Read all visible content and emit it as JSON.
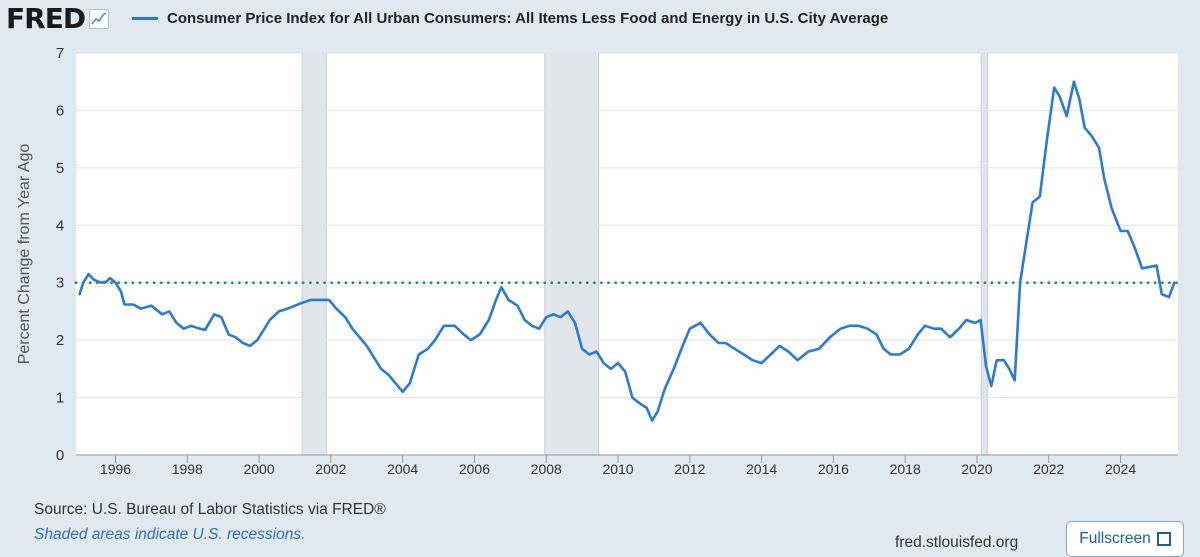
{
  "header": {
    "logo_text": "FRED",
    "logo_icon": "line-chart-icon",
    "series_label": "Consumer Price Index for All Urban Consumers: All Items Less Food and Energy in U.S. City Average"
  },
  "footer": {
    "source": "Source: U.S. Bureau of Labor Statistics via FRED®",
    "note": "Shaded areas indicate U.S. recessions.",
    "site": "fred.stlouisfed.org",
    "fullscreen_label": "Fullscreen",
    "fullscreen_icon": "expand-corners-icon"
  },
  "colors": {
    "background": "#e1e9f0",
    "plot_background": "#ffffff",
    "series_line": "#2b7bd4",
    "reference_line": "#1f8a6a",
    "recession_shade": "#e1e6ea"
  },
  "chart_data": {
    "type": "line",
    "title": "",
    "xlabel": "",
    "ylabel": "Percent Change from Year Ago",
    "xlim": [
      1994.9,
      2025.6
    ],
    "ylim": [
      0,
      7
    ],
    "x_ticks": [
      "1996",
      "1998",
      "2000",
      "2002",
      "2004",
      "2006",
      "2008",
      "2010",
      "2012",
      "2014",
      "2016",
      "2018",
      "2020",
      "2022",
      "2024"
    ],
    "y_ticks": [
      "0",
      "1",
      "2",
      "3",
      "4",
      "5",
      "6",
      "7"
    ],
    "grid": "horizontal",
    "legend": "top",
    "reference_line": {
      "y": 3.0,
      "style": "dotted"
    },
    "recessions": [
      {
        "start": 2001.2,
        "end": 2001.87
      },
      {
        "start": 2007.96,
        "end": 2009.46
      },
      {
        "start": 2020.12,
        "end": 2020.29
      }
    ],
    "series": [
      {
        "name": "Consumer Price Index for All Urban Consumers: All Items Less Food and Energy in U.S. City Average",
        "points": [
          [
            1995.0,
            2.8
          ],
          [
            1995.1,
            3.0
          ],
          [
            1995.25,
            3.15
          ],
          [
            1995.4,
            3.05
          ],
          [
            1995.6,
            3.0
          ],
          [
            1995.75,
            3.02
          ],
          [
            1995.85,
            3.08
          ],
          [
            1996.0,
            3.0
          ],
          [
            1996.15,
            2.85
          ],
          [
            1996.25,
            2.62
          ],
          [
            1996.5,
            2.62
          ],
          [
            1996.7,
            2.55
          ],
          [
            1997.0,
            2.6
          ],
          [
            1997.3,
            2.45
          ],
          [
            1997.5,
            2.5
          ],
          [
            1997.7,
            2.3
          ],
          [
            1997.9,
            2.2
          ],
          [
            1998.1,
            2.25
          ],
          [
            1998.35,
            2.2
          ],
          [
            1998.5,
            2.18
          ],
          [
            1998.75,
            2.45
          ],
          [
            1998.95,
            2.4
          ],
          [
            1999.15,
            2.1
          ],
          [
            1999.35,
            2.05
          ],
          [
            1999.55,
            1.95
          ],
          [
            1999.75,
            1.9
          ],
          [
            1999.95,
            2.0
          ],
          [
            2000.15,
            2.2
          ],
          [
            2000.3,
            2.35
          ],
          [
            2000.55,
            2.5
          ],
          [
            2000.8,
            2.55
          ],
          [
            2001.0,
            2.6
          ],
          [
            2001.2,
            2.65
          ],
          [
            2001.45,
            2.7
          ],
          [
            2001.7,
            2.7
          ],
          [
            2001.95,
            2.7
          ],
          [
            2002.15,
            2.55
          ],
          [
            2002.4,
            2.4
          ],
          [
            2002.6,
            2.2
          ],
          [
            2002.8,
            2.05
          ],
          [
            2003.0,
            1.9
          ],
          [
            2003.2,
            1.7
          ],
          [
            2003.4,
            1.5
          ],
          [
            2003.6,
            1.4
          ],
          [
            2003.8,
            1.25
          ],
          [
            2004.0,
            1.1
          ],
          [
            2004.2,
            1.25
          ],
          [
            2004.45,
            1.75
          ],
          [
            2004.7,
            1.85
          ],
          [
            2004.9,
            2.0
          ],
          [
            2005.15,
            2.25
          ],
          [
            2005.45,
            2.25
          ],
          [
            2005.7,
            2.1
          ],
          [
            2005.9,
            2.0
          ],
          [
            2006.15,
            2.1
          ],
          [
            2006.4,
            2.35
          ],
          [
            2006.6,
            2.7
          ],
          [
            2006.75,
            2.92
          ],
          [
            2006.95,
            2.7
          ],
          [
            2007.2,
            2.6
          ],
          [
            2007.4,
            2.35
          ],
          [
            2007.6,
            2.25
          ],
          [
            2007.8,
            2.2
          ],
          [
            2008.0,
            2.4
          ],
          [
            2008.2,
            2.45
          ],
          [
            2008.4,
            2.4
          ],
          [
            2008.6,
            2.5
          ],
          [
            2008.8,
            2.3
          ],
          [
            2009.0,
            1.85
          ],
          [
            2009.2,
            1.75
          ],
          [
            2009.4,
            1.8
          ],
          [
            2009.6,
            1.6
          ],
          [
            2009.8,
            1.5
          ],
          [
            2010.0,
            1.6
          ],
          [
            2010.2,
            1.45
          ],
          [
            2010.4,
            1.0
          ],
          [
            2010.6,
            0.9
          ],
          [
            2010.8,
            0.82
          ],
          [
            2010.95,
            0.6
          ],
          [
            2011.1,
            0.75
          ],
          [
            2011.3,
            1.15
          ],
          [
            2011.55,
            1.5
          ],
          [
            2011.8,
            1.9
          ],
          [
            2012.0,
            2.2
          ],
          [
            2012.3,
            2.3
          ],
          [
            2012.55,
            2.1
          ],
          [
            2012.8,
            1.95
          ],
          [
            2013.0,
            1.95
          ],
          [
            2013.25,
            1.85
          ],
          [
            2013.5,
            1.75
          ],
          [
            2013.75,
            1.65
          ],
          [
            2014.0,
            1.6
          ],
          [
            2014.25,
            1.75
          ],
          [
            2014.5,
            1.9
          ],
          [
            2014.75,
            1.8
          ],
          [
            2015.0,
            1.65
          ],
          [
            2015.3,
            1.8
          ],
          [
            2015.6,
            1.85
          ],
          [
            2015.9,
            2.05
          ],
          [
            2016.2,
            2.2
          ],
          [
            2016.45,
            2.25
          ],
          [
            2016.7,
            2.25
          ],
          [
            2016.95,
            2.2
          ],
          [
            2017.2,
            2.1
          ],
          [
            2017.4,
            1.85
          ],
          [
            2017.6,
            1.75
          ],
          [
            2017.85,
            1.75
          ],
          [
            2018.1,
            1.85
          ],
          [
            2018.35,
            2.1
          ],
          [
            2018.55,
            2.25
          ],
          [
            2018.8,
            2.2
          ],
          [
            2019.0,
            2.2
          ],
          [
            2019.25,
            2.05
          ],
          [
            2019.5,
            2.2
          ],
          [
            2019.7,
            2.35
          ],
          [
            2019.95,
            2.3
          ],
          [
            2020.1,
            2.35
          ],
          [
            2020.25,
            1.55
          ],
          [
            2020.4,
            1.2
          ],
          [
            2020.55,
            1.65
          ],
          [
            2020.75,
            1.65
          ],
          [
            2020.9,
            1.5
          ],
          [
            2021.05,
            1.3
          ],
          [
            2021.2,
            3.0
          ],
          [
            2021.4,
            3.8
          ],
          [
            2021.55,
            4.4
          ],
          [
            2021.75,
            4.5
          ],
          [
            2021.95,
            5.5
          ],
          [
            2022.15,
            6.4
          ],
          [
            2022.3,
            6.25
          ],
          [
            2022.5,
            5.9
          ],
          [
            2022.7,
            6.5
          ],
          [
            2022.85,
            6.2
          ],
          [
            2023.0,
            5.7
          ],
          [
            2023.2,
            5.55
          ],
          [
            2023.4,
            5.35
          ],
          [
            2023.55,
            4.8
          ],
          [
            2023.75,
            4.3
          ],
          [
            2024.0,
            3.9
          ],
          [
            2024.2,
            3.9
          ],
          [
            2024.4,
            3.6
          ],
          [
            2024.6,
            3.25
          ],
          [
            2024.85,
            3.28
          ],
          [
            2025.0,
            3.3
          ],
          [
            2025.15,
            2.8
          ],
          [
            2025.35,
            2.75
          ],
          [
            2025.5,
            3.0
          ]
        ]
      }
    ]
  }
}
